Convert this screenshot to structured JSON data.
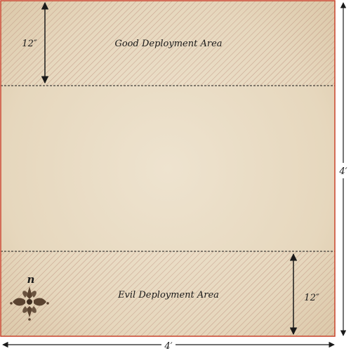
{
  "map": {
    "board_width_label": "4′",
    "board_height_label": "4′",
    "top_zone": {
      "label": "Good Deployment Area",
      "depth_label": "12″"
    },
    "bottom_zone": {
      "label": "Evil Deployment Area",
      "depth_label": "12″"
    },
    "compass": {
      "north_label": "n",
      "icon": "fleur-de-lis-compass-icon"
    },
    "colors": {
      "parchment": "#e9dcc4",
      "hatch": "#b98a78",
      "border": "#c8442b",
      "arrow": "#1a1a1a",
      "north_letter": "#b0261a"
    }
  }
}
